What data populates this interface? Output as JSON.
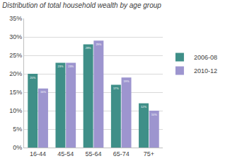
{
  "chart_data": {
    "type": "bar",
    "title": "Distribution of total household wealth by age group",
    "categories": [
      "16-44",
      "45-54",
      "55-64",
      "65-74",
      "75+"
    ],
    "series": [
      {
        "name": "2006-08",
        "color": "#3f8f88",
        "values": [
          20,
          23,
          28,
          17,
          12
        ],
        "value_labels": [
          "20%",
          "23%",
          "28%",
          "17%",
          "12%"
        ]
      },
      {
        "name": "2010-12",
        "color": "#9d95cf",
        "values": [
          16,
          23,
          29,
          19,
          10
        ],
        "value_labels": [
          "16%",
          "23%",
          "29%",
          "19%",
          "10%"
        ]
      }
    ],
    "ylim": [
      0,
      35
    ],
    "yticks": [
      {
        "value": 0,
        "label": "0%"
      },
      {
        "value": 5,
        "label": "5%"
      },
      {
        "value": 10,
        "label": "10%"
      },
      {
        "value": 15,
        "label": "15%"
      },
      {
        "value": 20,
        "label": "20%"
      },
      {
        "value": 25,
        "label": "25%"
      },
      {
        "value": 30,
        "label": "30%"
      },
      {
        "value": 35,
        "label": "35%"
      }
    ],
    "grid": true,
    "legend": "right",
    "data_labels": true
  }
}
